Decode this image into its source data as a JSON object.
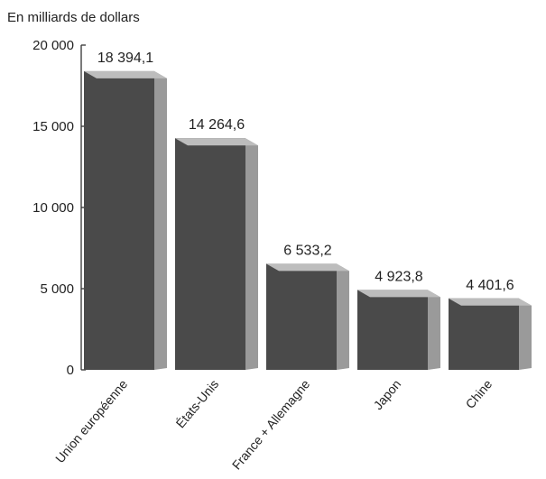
{
  "chart_data": {
    "type": "bar",
    "ylabel": "En milliards de dollars",
    "categories": [
      "Union européenne",
      "États-Unis",
      "France + Allemagne",
      "Japon",
      "Chine"
    ],
    "values": [
      18394.1,
      14264.6,
      6533.2,
      4923.8,
      4401.6
    ],
    "value_labels": [
      "18 394,1",
      "14 264,6",
      "6 533,2",
      "4 923,8",
      "4 401,6"
    ],
    "ylim": [
      0,
      20000
    ],
    "yticks": [
      0,
      5000,
      10000,
      15000,
      20000
    ],
    "ytick_labels": [
      "0",
      "5 000",
      "10 000",
      "15 000",
      "20 000"
    ],
    "grid": false,
    "colors": {
      "bar_front": "#4a4a4a",
      "bar_side": "#9a9a9a",
      "bar_top": "#bdbdbd"
    }
  }
}
